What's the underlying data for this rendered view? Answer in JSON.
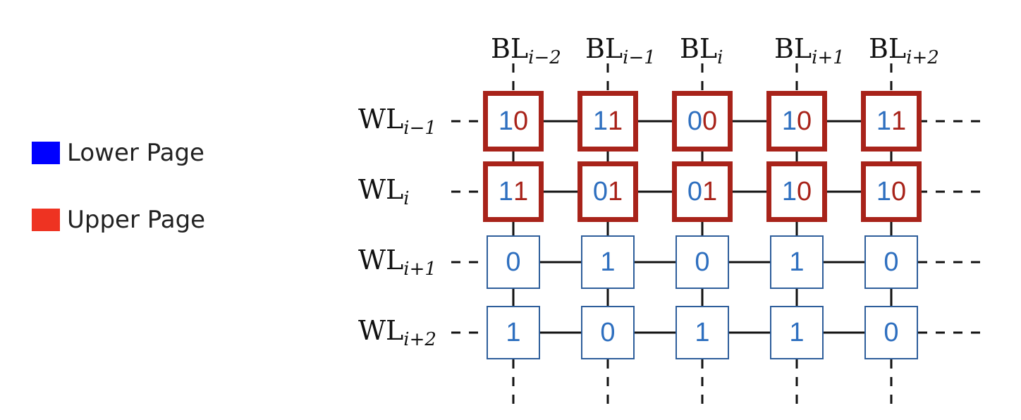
{
  "legend": [
    {
      "label": "Lower Page",
      "color": "#0000ff"
    },
    {
      "label": "Upper Page",
      "color": "#ee3322"
    }
  ],
  "bitlines": [
    {
      "base": "BL",
      "sub": "i−2"
    },
    {
      "base": "BL",
      "sub": "i−1"
    },
    {
      "base": "BL",
      "sub": "i"
    },
    {
      "base": "BL",
      "sub": "i+1"
    },
    {
      "base": "BL",
      "sub": "i+2"
    }
  ],
  "wordlines": [
    {
      "base": "WL",
      "sub": "i−1",
      "type": "mlc",
      "cells": [
        [
          "1",
          "0"
        ],
        [
          "1",
          "1"
        ],
        [
          "0",
          "0"
        ],
        [
          "1",
          "0"
        ],
        [
          "1",
          "1"
        ]
      ]
    },
    {
      "base": "WL",
      "sub": "i",
      "type": "mlc",
      "cells": [
        [
          "1",
          "1"
        ],
        [
          "0",
          "1"
        ],
        [
          "0",
          "1"
        ],
        [
          "1",
          "0"
        ],
        [
          "1",
          "0"
        ]
      ]
    },
    {
      "base": "WL",
      "sub": "i+1",
      "type": "slc",
      "cells": [
        [
          "0"
        ],
        [
          "1"
        ],
        [
          "0"
        ],
        [
          "1"
        ],
        [
          "0"
        ]
      ]
    },
    {
      "base": "WL",
      "sub": "i+2",
      "type": "slc",
      "cells": [
        [
          "1"
        ],
        [
          "0"
        ],
        [
          "1"
        ],
        [
          "1"
        ],
        [
          "0"
        ]
      ]
    }
  ],
  "colors": {
    "lower_bit": "#2e6fbf",
    "upper_bit": "#a8231a",
    "mlc_border": "#a8231a",
    "slc_border": "#2e5e9b",
    "line": "#111111"
  }
}
